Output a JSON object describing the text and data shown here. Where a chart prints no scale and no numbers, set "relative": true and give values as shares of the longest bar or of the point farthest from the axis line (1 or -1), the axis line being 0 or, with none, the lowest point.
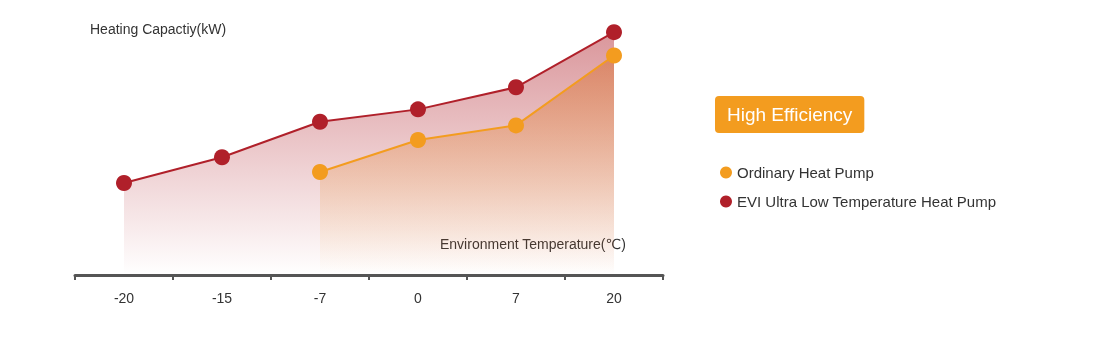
{
  "chart_data": {
    "type": "area",
    "relative": true,
    "xlabel": "Environment Temperature(℃)",
    "ylabel": "Heating Capactiy(kW)",
    "categories": [
      "-20",
      "-15",
      "-7",
      "0",
      "7",
      "20"
    ],
    "series": [
      {
        "name": "Ordinary Heat Pump",
        "color": "#f39c1f",
        "values": [
          null,
          null,
          0.424,
          0.556,
          0.616,
          0.904
        ]
      },
      {
        "name": "EVI Ultra Low Temperature Heat Pump",
        "color": "#b0202a",
        "values": [
          0.379,
          0.485,
          0.631,
          0.682,
          0.773,
          1
        ]
      }
    ],
    "annotations": [
      "High Efficiency"
    ],
    "legend": "right",
    "marker": "circle",
    "grid": false
  }
}
